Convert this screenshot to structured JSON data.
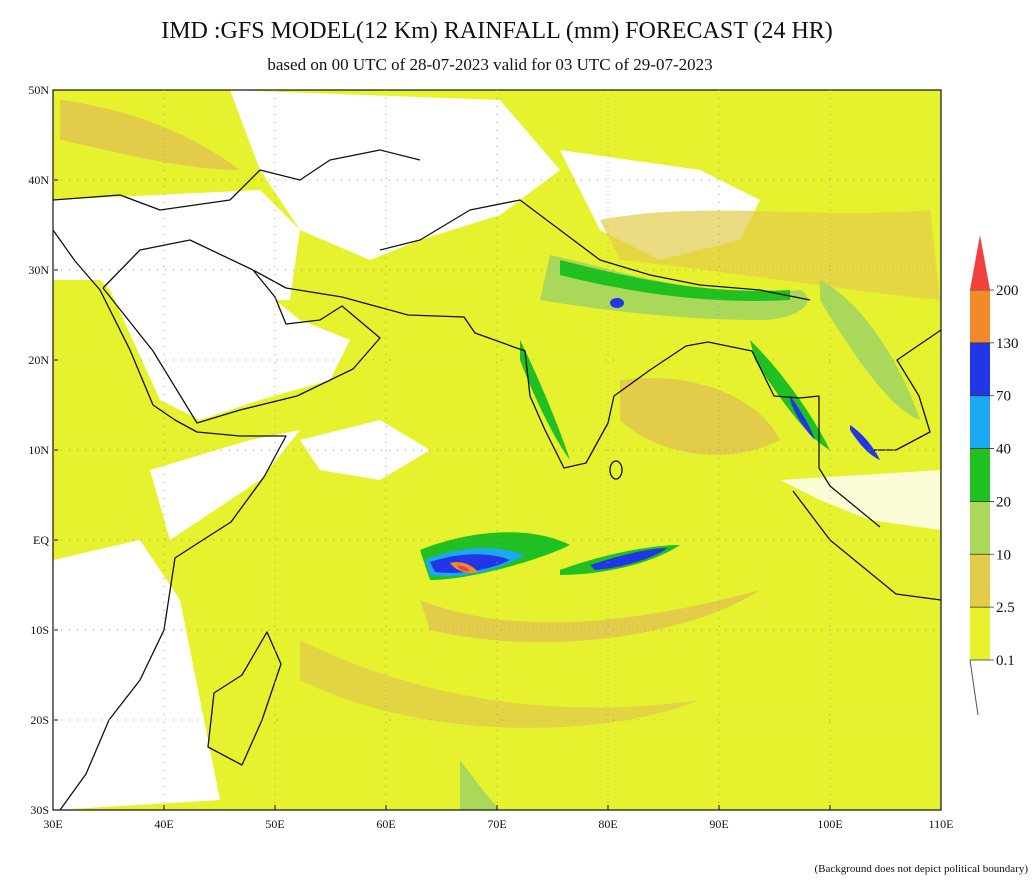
{
  "title": "IMD :GFS MODEL(12 Km) RAINFALL (mm) FORECAST (24 HR)",
  "subtitle": "based on 00 UTC of 28-07-2023 valid for 03 UTC of 29-07-2023",
  "map": {
    "lon_range": [
      30,
      110
    ],
    "lat_range": [
      -30,
      50
    ],
    "lat_ticks": [
      {
        "value": 50,
        "label": "50N"
      },
      {
        "value": 40,
        "label": "40N"
      },
      {
        "value": 30,
        "label": "30N"
      },
      {
        "value": 20,
        "label": "20N"
      },
      {
        "value": 10,
        "label": "10N"
      },
      {
        "value": 0,
        "label": "EQ"
      },
      {
        "value": -10,
        "label": "10S"
      },
      {
        "value": -20,
        "label": "20S"
      },
      {
        "value": -30,
        "label": "30S"
      }
    ],
    "lon_ticks": [
      {
        "value": 30,
        "label": "30E"
      },
      {
        "value": 40,
        "label": "40E"
      },
      {
        "value": 50,
        "label": "50E"
      },
      {
        "value": 60,
        "label": "60E"
      },
      {
        "value": 70,
        "label": "70E"
      },
      {
        "value": 80,
        "label": "80E"
      },
      {
        "value": 90,
        "label": "90E"
      },
      {
        "value": 100,
        "label": "100E"
      },
      {
        "value": 110,
        "label": "110E"
      }
    ]
  },
  "colorbar": {
    "levels": [
      0.1,
      2.5,
      10,
      20,
      40,
      70,
      130,
      200
    ],
    "colors": [
      "#e6f22e",
      "#e2cc4a",
      "#a9d85a",
      "#1fc01f",
      "#1aa8f2",
      "#2236e6",
      "#f08a2a",
      "#f04040"
    ]
  },
  "footnote": "(Background does not depict political boundary)"
}
